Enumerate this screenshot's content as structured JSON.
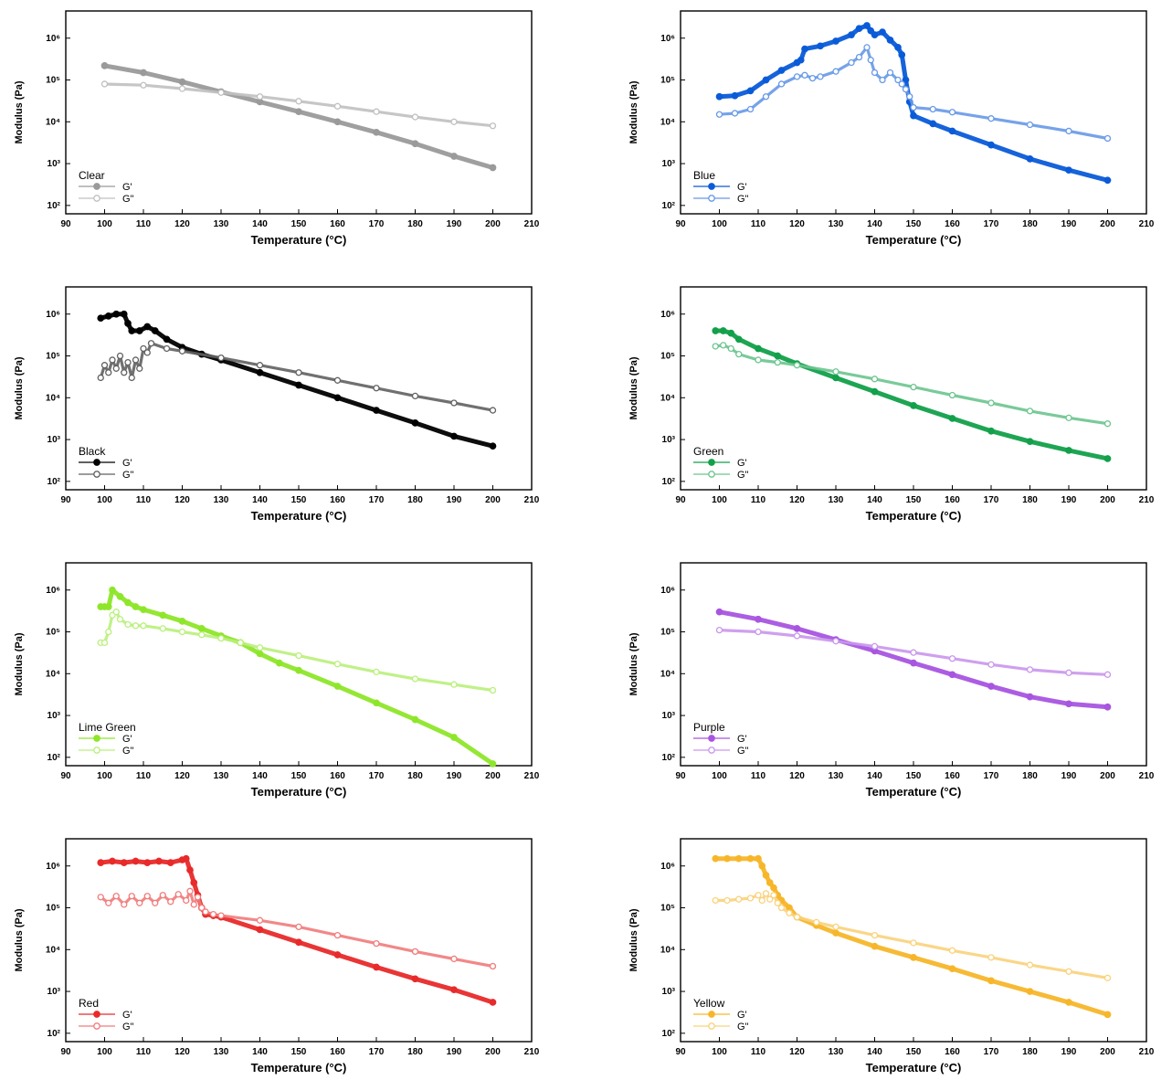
{
  "chart_data": [
    {
      "type": "scatter",
      "legend_title": "Clear",
      "xlabel": "Temperature (°C)",
      "ylabel": "Modulus (Pa)",
      "xlim": [
        90,
        210
      ],
      "ylog_exp": [
        2,
        6
      ],
      "x_ticks": [
        "90",
        "100",
        "110",
        "120",
        "130",
        "140",
        "150",
        "160",
        "170",
        "180",
        "190",
        "200",
        "210"
      ],
      "y_ticks": [
        "10²",
        "10³",
        "10⁴",
        "10⁵",
        "10⁶"
      ],
      "legend_position": "bottom-left",
      "color": "#9a9a9a",
      "series": [
        {
          "name": "G'",
          "marker": "filled",
          "x": [
            100,
            110,
            120,
            130,
            140,
            150,
            160,
            170,
            180,
            190,
            200
          ],
          "y": [
            220000,
            150000,
            90000,
            52000,
            30000,
            17500,
            10000,
            5600,
            3000,
            1500,
            800
          ]
        },
        {
          "name": "G\"",
          "marker": "open",
          "x": [
            100,
            110,
            120,
            130,
            140,
            150,
            160,
            170,
            180,
            190,
            200
          ],
          "y": [
            80000,
            75000,
            62000,
            50000,
            40000,
            31000,
            23500,
            17500,
            13000,
            10000,
            8000
          ]
        }
      ]
    },
    {
      "type": "scatter",
      "legend_title": "Blue",
      "xlabel": "Temperature (°C)",
      "ylabel": "Modulus (Pa)",
      "xlim": [
        90,
        210
      ],
      "ylog_exp": [
        2,
        6
      ],
      "x_ticks": [
        "90",
        "100",
        "110",
        "120",
        "130",
        "140",
        "150",
        "160",
        "170",
        "180",
        "190",
        "200",
        "210"
      ],
      "y_ticks": [
        "10²",
        "10³",
        "10⁴",
        "10⁵",
        "10⁶"
      ],
      "legend_position": "bottom-left",
      "color": "#0a5bd8",
      "series": [
        {
          "name": "G'",
          "marker": "filled",
          "x": [
            100,
            104,
            108,
            112,
            116,
            120,
            121,
            122,
            126,
            130,
            134,
            136,
            138,
            139,
            140,
            142,
            144,
            146,
            147,
            148,
            149,
            150,
            155,
            160,
            170,
            180,
            190,
            200
          ],
          "y": [
            40000,
            42000,
            55000,
            100000,
            170000,
            260000,
            300000,
            550000,
            650000,
            850000,
            1200000,
            1700000,
            2000000,
            1500000,
            1200000,
            1400000,
            900000,
            600000,
            400000,
            100000,
            30000,
            14000,
            9000,
            6000,
            2800,
            1300,
            700,
            400
          ]
        },
        {
          "name": "G\"",
          "marker": "open",
          "x": [
            100,
            104,
            108,
            112,
            116,
            120,
            122,
            124,
            126,
            130,
            134,
            136,
            138,
            139,
            140,
            142,
            144,
            146,
            147,
            148,
            149,
            150,
            155,
            160,
            170,
            180,
            190,
            200
          ],
          "y": [
            15000,
            16000,
            20000,
            40000,
            80000,
            120000,
            130000,
            110000,
            120000,
            160000,
            260000,
            350000,
            600000,
            300000,
            150000,
            100000,
            150000,
            100000,
            80000,
            60000,
            40000,
            22000,
            20000,
            17000,
            12000,
            8500,
            6000,
            4000
          ]
        }
      ]
    },
    {
      "type": "scatter",
      "legend_title": "Black",
      "xlabel": "Temperature (°C)",
      "ylabel": "Modulus (Pa)",
      "xlim": [
        90,
        210
      ],
      "ylog_exp": [
        2,
        6
      ],
      "x_ticks": [
        "90",
        "100",
        "110",
        "120",
        "130",
        "140",
        "150",
        "160",
        "170",
        "180",
        "190",
        "200",
        "210"
      ],
      "y_ticks": [
        "10²",
        "10³",
        "10⁴",
        "10⁵",
        "10⁶"
      ],
      "legend_position": "bottom-left",
      "color": "#000000",
      "series": [
        {
          "name": "G'",
          "marker": "filled",
          "x": [
            99,
            101,
            103,
            105,
            106,
            107,
            109,
            111,
            113,
            116,
            120,
            125,
            130,
            140,
            150,
            160,
            170,
            180,
            190,
            200
          ],
          "y": [
            800000,
            900000,
            1000000,
            1000000,
            600000,
            400000,
            400000,
            500000,
            400000,
            250000,
            160000,
            110000,
            80000,
            40000,
            20000,
            10000,
            5000,
            2500,
            1200,
            700
          ]
        },
        {
          "name": "G\"",
          "marker": "open",
          "x": [
            99,
            100,
            101,
            102,
            103,
            104,
            105,
            106,
            107,
            108,
            109,
            110,
            111,
            112,
            116,
            120,
            130,
            140,
            150,
            160,
            170,
            180,
            190,
            200
          ],
          "y": [
            30000,
            60000,
            40000,
            80000,
            50000,
            100000,
            40000,
            70000,
            30000,
            80000,
            50000,
            150000,
            120000,
            200000,
            150000,
            130000,
            90000,
            60000,
            40000,
            26000,
            17000,
            11000,
            7500,
            5000
          ]
        }
      ]
    },
    {
      "type": "scatter",
      "legend_title": "Green",
      "xlabel": "Temperature (°C)",
      "ylabel": "Modulus (Pa)",
      "xlim": [
        90,
        210
      ],
      "ylog_exp": [
        2,
        6
      ],
      "x_ticks": [
        "90",
        "100",
        "110",
        "120",
        "130",
        "140",
        "150",
        "160",
        "170",
        "180",
        "190",
        "200",
        "210"
      ],
      "y_ticks": [
        "10²",
        "10³",
        "10⁴",
        "10⁵",
        "10⁶"
      ],
      "legend_position": "bottom-left",
      "color": "#12a04a",
      "series": [
        {
          "name": "G'",
          "marker": "filled",
          "x": [
            99,
            101,
            103,
            105,
            110,
            115,
            120,
            130,
            140,
            150,
            160,
            170,
            180,
            190,
            200
          ],
          "y": [
            400000,
            400000,
            350000,
            250000,
            150000,
            100000,
            65000,
            30000,
            14000,
            6500,
            3200,
            1600,
            900,
            550,
            350
          ]
        },
        {
          "name": "G\"",
          "marker": "open",
          "x": [
            99,
            101,
            103,
            105,
            110,
            115,
            120,
            130,
            140,
            150,
            160,
            170,
            180,
            190,
            200
          ],
          "y": [
            170000,
            180000,
            150000,
            110000,
            80000,
            70000,
            60000,
            42000,
            28000,
            18000,
            11500,
            7500,
            4800,
            3300,
            2400
          ]
        }
      ]
    },
    {
      "type": "scatter",
      "legend_title": "Lime Green",
      "xlabel": "Temperature (°C)",
      "ylabel": "Modulus (Pa)",
      "xlim": [
        90,
        210
      ],
      "ylog_exp": [
        2,
        6
      ],
      "x_ticks": [
        "90",
        "100",
        "110",
        "120",
        "130",
        "140",
        "150",
        "160",
        "170",
        "180",
        "190",
        "200",
        "210"
      ],
      "y_ticks": [
        "10²",
        "10³",
        "10⁴",
        "10⁵",
        "10⁶"
      ],
      "legend_position": "bottom-left",
      "color": "#8ee62a",
      "series": [
        {
          "name": "G'",
          "marker": "filled",
          "x": [
            99,
            100,
            101,
            102,
            104,
            106,
            108,
            110,
            115,
            120,
            125,
            130,
            135,
            140,
            145,
            150,
            160,
            170,
            180,
            190,
            200
          ],
          "y": [
            400000,
            400000,
            400000,
            1000000,
            700000,
            500000,
            400000,
            340000,
            250000,
            180000,
            120000,
            80000,
            55000,
            30000,
            18000,
            12000,
            5000,
            2000,
            800,
            300,
            70
          ]
        },
        {
          "name": "G\"",
          "marker": "open",
          "x": [
            99,
            100,
            101,
            102,
            103,
            104,
            106,
            108,
            110,
            115,
            120,
            125,
            130,
            135,
            140,
            150,
            160,
            170,
            180,
            190,
            200
          ],
          "y": [
            55000,
            55000,
            100000,
            250000,
            300000,
            200000,
            150000,
            140000,
            140000,
            120000,
            100000,
            85000,
            70000,
            55000,
            42000,
            27000,
            17000,
            11000,
            7500,
            5500,
            4000
          ]
        }
      ]
    },
    {
      "type": "scatter",
      "legend_title": "Purple",
      "xlabel": "Temperature (°C)",
      "ylabel": "Modulus (Pa)",
      "xlim": [
        90,
        210
      ],
      "ylog_exp": [
        2,
        6
      ],
      "x_ticks": [
        "90",
        "100",
        "110",
        "120",
        "130",
        "140",
        "150",
        "160",
        "170",
        "180",
        "190",
        "200",
        "210"
      ],
      "y_ticks": [
        "10²",
        "10³",
        "10⁴",
        "10⁵",
        "10⁶"
      ],
      "legend_position": "bottom-left",
      "color": "#a855e0",
      "series": [
        {
          "name": "G'",
          "marker": "filled",
          "x": [
            100,
            110,
            120,
            130,
            140,
            150,
            160,
            170,
            180,
            190,
            200
          ],
          "y": [
            300000,
            200000,
            120000,
            65000,
            35000,
            18000,
            9500,
            5000,
            2800,
            1900,
            1600
          ]
        },
        {
          "name": "G\"",
          "marker": "open",
          "x": [
            100,
            110,
            120,
            130,
            140,
            150,
            160,
            170,
            180,
            190,
            200
          ],
          "y": [
            110000,
            100000,
            80000,
            60000,
            45000,
            32000,
            23000,
            16500,
            12500,
            10500,
            9500
          ]
        }
      ]
    },
    {
      "type": "scatter",
      "legend_title": "Red",
      "xlabel": "Temperature (°C)",
      "ylabel": "Modulus (Pa)",
      "xlim": [
        90,
        210
      ],
      "ylog_exp": [
        2,
        6
      ],
      "x_ticks": [
        "90",
        "100",
        "110",
        "120",
        "130",
        "140",
        "150",
        "160",
        "170",
        "180",
        "190",
        "200",
        "210"
      ],
      "y_ticks": [
        "10²",
        "10³",
        "10⁴",
        "10⁵",
        "10⁶"
      ],
      "legend_position": "bottom-left",
      "color": "#e82a2a",
      "series": [
        {
          "name": "G'",
          "marker": "filled",
          "x": [
            99,
            102,
            105,
            108,
            111,
            114,
            117,
            120,
            121,
            122,
            123,
            124,
            125,
            126,
            128,
            130,
            140,
            150,
            160,
            170,
            180,
            190,
            200
          ],
          "y": [
            1200000,
            1300000,
            1200000,
            1300000,
            1200000,
            1300000,
            1200000,
            1400000,
            1500000,
            800000,
            400000,
            200000,
            100000,
            70000,
            65000,
            60000,
            30000,
            15000,
            7500,
            3800,
            2000,
            1100,
            550
          ]
        },
        {
          "name": "G\"",
          "marker": "open",
          "x": [
            99,
            101,
            103,
            105,
            107,
            109,
            111,
            113,
            115,
            117,
            119,
            121,
            122,
            123,
            124,
            125,
            126,
            128,
            130,
            140,
            150,
            160,
            170,
            180,
            190,
            200
          ],
          "y": [
            180000,
            130000,
            190000,
            120000,
            190000,
            130000,
            190000,
            130000,
            200000,
            140000,
            210000,
            150000,
            250000,
            120000,
            180000,
            100000,
            80000,
            70000,
            65000,
            50000,
            35000,
            22000,
            14000,
            9000,
            6000,
            4000
          ]
        }
      ]
    },
    {
      "type": "scatter",
      "legend_title": "Yellow",
      "xlabel": "Temperature (°C)",
      "ylabel": "Modulus (Pa)",
      "xlim": [
        90,
        210
      ],
      "ylog_exp": [
        2,
        6
      ],
      "x_ticks": [
        "90",
        "100",
        "110",
        "120",
        "130",
        "140",
        "150",
        "160",
        "170",
        "180",
        "190",
        "200",
        "210"
      ],
      "y_ticks": [
        "10²",
        "10³",
        "10⁴",
        "10⁵",
        "10⁶"
      ],
      "legend_position": "bottom-left",
      "color": "#f7b62a",
      "series": [
        {
          "name": "G'",
          "marker": "filled",
          "x": [
            99,
            102,
            105,
            108,
            110,
            111,
            112,
            113,
            114,
            115,
            116,
            118,
            120,
            125,
            130,
            140,
            150,
            160,
            170,
            180,
            190,
            200
          ],
          "y": [
            1500000,
            1500000,
            1500000,
            1500000,
            1500000,
            1000000,
            600000,
            400000,
            300000,
            200000,
            150000,
            100000,
            60000,
            38000,
            25000,
            12000,
            6500,
            3500,
            1800,
            1000,
            550,
            280
          ]
        },
        {
          "name": "G\"",
          "marker": "open",
          "x": [
            99,
            102,
            105,
            108,
            110,
            111,
            112,
            113,
            114,
            115,
            116,
            118,
            120,
            125,
            130,
            140,
            150,
            160,
            170,
            180,
            190,
            200
          ],
          "y": [
            150000,
            150000,
            160000,
            170000,
            200000,
            150000,
            220000,
            160000,
            200000,
            130000,
            100000,
            75000,
            60000,
            45000,
            35000,
            22000,
            14500,
            9500,
            6500,
            4300,
            3000,
            2100
          ]
        }
      ]
    }
  ]
}
